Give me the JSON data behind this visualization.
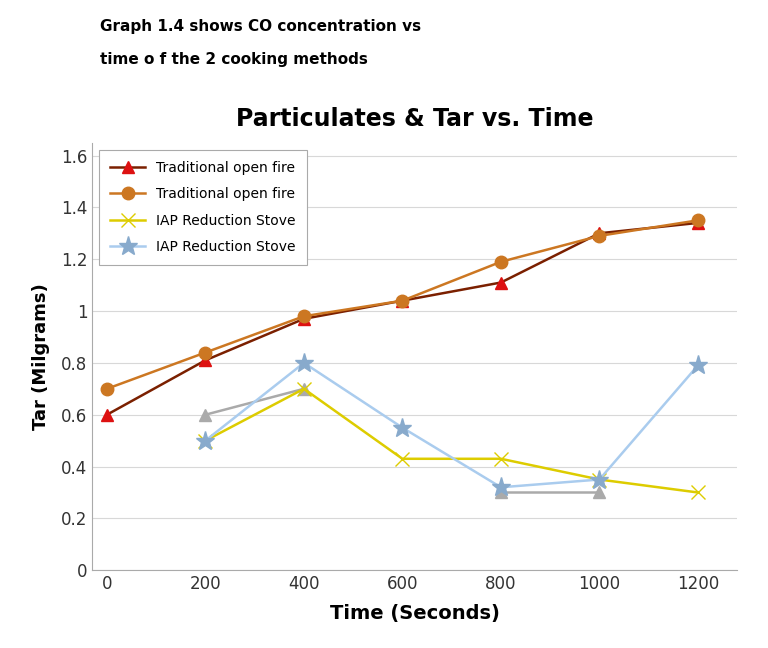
{
  "title": "Particulates & Tar vs. Time",
  "subtitle_line1": "Graph 1.4 shows CO concentration vs",
  "subtitle_line2": "time o f the 2 cooking methods",
  "xlabel": "Time (Seconds)",
  "ylabel": "Tar (Milgrams)",
  "x": [
    0,
    200,
    400,
    600,
    800,
    1000,
    1200
  ],
  "series": [
    {
      "label": "Traditional open fire",
      "color": "#7B2000",
      "marker": "^",
      "markercolor": "#DD1111",
      "markersize": 9,
      "values": [
        0.6,
        0.81,
        0.97,
        1.04,
        1.11,
        1.3,
        1.34
      ]
    },
    {
      "label": "Traditional open fire",
      "color": "#CC7722",
      "marker": "o",
      "markercolor": "#CC7722",
      "markersize": 9,
      "values": [
        0.7,
        0.84,
        0.98,
        1.04,
        1.19,
        1.29,
        1.35
      ]
    },
    {
      "label": "IAP Reduction Stove",
      "color": "#AAAAAA",
      "marker": "^",
      "markercolor": "#AAAAAA",
      "markersize": 9,
      "values": [
        null,
        0.6,
        0.7,
        null,
        0.3,
        0.3,
        null
      ]
    },
    {
      "label": "IAP Reduction Stove",
      "color": "#DDCC00",
      "marker": "x",
      "markercolor": "#DDCC00",
      "markersize": 10,
      "values": [
        null,
        0.5,
        0.7,
        0.43,
        0.43,
        0.35,
        0.3
      ]
    },
    {
      "label": "IAP Reduction Stove",
      "color": "#AACCEE",
      "marker": "*",
      "markercolor": "#88AACC",
      "markersize": 14,
      "values": [
        null,
        0.5,
        0.8,
        0.55,
        0.32,
        0.35,
        0.79
      ]
    }
  ],
  "ylim": [
    0,
    1.65
  ],
  "yticks": [
    0,
    0.2,
    0.4,
    0.6,
    0.8,
    1.0,
    1.2,
    1.4,
    1.6
  ],
  "yticklabels": [
    "0",
    "0.2",
    "0.4",
    "0.6",
    "0.8",
    "1",
    "1.2",
    "1.4",
    "1.6"
  ],
  "xlim": [
    -30,
    1280
  ],
  "xticks": [
    0,
    200,
    400,
    600,
    800,
    1000,
    1200
  ],
  "background_color": "#FFFFFF",
  "grid_color": "#D8D8D8"
}
